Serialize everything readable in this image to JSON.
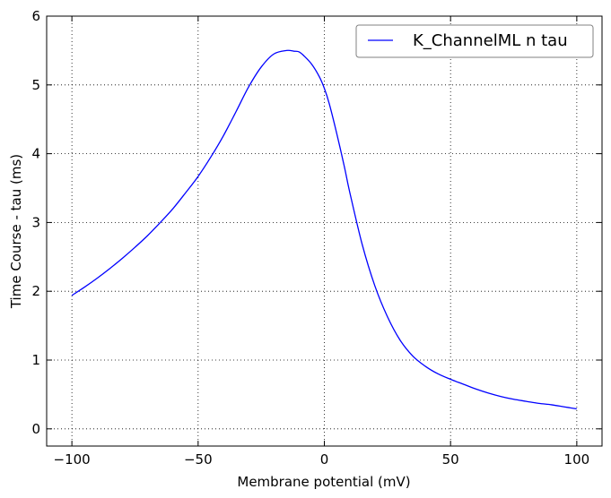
{
  "chart_data": {
    "type": "line",
    "xlabel": "Membrane potential (mV)",
    "ylabel": "Time Course - tau (ms)",
    "xlim": [
      -110,
      110
    ],
    "ylim": [
      -0.25,
      6
    ],
    "xticks": [
      -100,
      -50,
      0,
      50,
      100
    ],
    "yticks": [
      0,
      1,
      2,
      3,
      4,
      5,
      6
    ],
    "xtick_labels": [
      "−100",
      "−50",
      "0",
      "50",
      "100"
    ],
    "ytick_labels": [
      "0",
      "1",
      "2",
      "3",
      "4",
      "5",
      "6"
    ],
    "grid": true,
    "legend_position": "top-right",
    "series": [
      {
        "name": "K_ChannelML n tau",
        "color": "#0000ff",
        "x": [
          -100,
          -95,
          -90,
          -85,
          -80,
          -75,
          -70,
          -65,
          -60,
          -55,
          -50,
          -45,
          -40,
          -35,
          -30,
          -25,
          -20,
          -15,
          -12,
          -10,
          -8,
          -5,
          -2,
          0,
          2,
          5,
          8,
          10,
          15,
          20,
          25,
          30,
          35,
          40,
          45,
          50,
          55,
          60,
          65,
          70,
          75,
          80,
          85,
          90,
          95,
          100
        ],
        "y": [
          1.94,
          2.06,
          2.19,
          2.33,
          2.48,
          2.64,
          2.81,
          3.0,
          3.2,
          3.43,
          3.67,
          3.95,
          4.26,
          4.61,
          4.97,
          5.26,
          5.45,
          5.5,
          5.49,
          5.48,
          5.42,
          5.3,
          5.12,
          4.95,
          4.72,
          4.28,
          3.8,
          3.45,
          2.68,
          2.08,
          1.63,
          1.29,
          1.06,
          0.91,
          0.8,
          0.72,
          0.65,
          0.58,
          0.52,
          0.47,
          0.43,
          0.4,
          0.37,
          0.35,
          0.32,
          0.29
        ]
      }
    ]
  }
}
